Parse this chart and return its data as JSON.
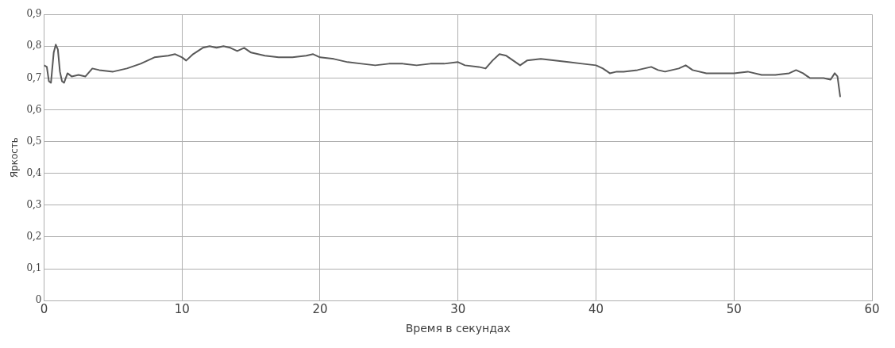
{
  "chart_data": {
    "type": "line",
    "xlabel": "Время в секундах",
    "ylabel": "Яркость",
    "xlim": [
      0,
      60
    ],
    "xticks": [
      0,
      10,
      20,
      30,
      40,
      50,
      60
    ],
    "ylim": [
      0,
      0.9
    ],
    "yticks": [
      {
        "value": 0,
        "label": "0"
      },
      {
        "value": 0.1,
        "label": "0,1"
      },
      {
        "value": 0.2,
        "label": "0,2"
      },
      {
        "value": 0.3,
        "label": "0,3"
      },
      {
        "value": 0.4,
        "label": "0,4"
      },
      {
        "value": 0.5,
        "label": "0,5"
      },
      {
        "value": 0.6,
        "label": "0,6"
      },
      {
        "value": 0.7,
        "label": "0,7"
      },
      {
        "value": 0.8,
        "label": "0,8"
      },
      {
        "value": 0.9,
        "label": "0,9"
      }
    ],
    "grid": true,
    "legend": false,
    "marker": "none",
    "line_style": "solid",
    "series": [
      {
        "color": "#595959",
        "x": [
          0,
          0.2,
          0.35,
          0.5,
          0.7,
          0.85,
          1.0,
          1.15,
          1.3,
          1.45,
          1.7,
          2,
          2.5,
          3,
          3.5,
          4,
          5,
          5.5,
          6,
          7,
          8,
          9,
          9.5,
          10,
          10.3,
          10.8,
          11.5,
          12,
          12.5,
          13,
          13.5,
          14,
          14.5,
          15,
          16,
          17,
          18,
          19,
          19.5,
          20,
          21,
          22,
          23,
          24,
          25,
          26,
          27,
          28,
          29,
          30,
          30.5,
          31.5,
          32,
          32.5,
          33,
          33.5,
          34,
          34.5,
          35,
          36,
          37,
          38,
          39,
          40,
          40.5,
          41,
          41.5,
          42,
          43,
          44,
          44.5,
          45,
          46,
          46.5,
          47,
          48,
          49,
          50,
          51,
          52,
          53,
          54,
          54.5,
          55,
          55.5,
          56,
          56.5,
          57,
          57.3,
          57.5,
          57.7
        ],
        "values": [
          0.74,
          0.735,
          0.69,
          0.685,
          0.78,
          0.805,
          0.79,
          0.72,
          0.69,
          0.685,
          0.715,
          0.705,
          0.71,
          0.705,
          0.73,
          0.725,
          0.72,
          0.725,
          0.73,
          0.745,
          0.765,
          0.77,
          0.775,
          0.765,
          0.755,
          0.775,
          0.795,
          0.8,
          0.795,
          0.8,
          0.795,
          0.785,
          0.795,
          0.78,
          0.77,
          0.765,
          0.765,
          0.77,
          0.775,
          0.765,
          0.76,
          0.75,
          0.745,
          0.74,
          0.745,
          0.745,
          0.74,
          0.745,
          0.745,
          0.75,
          0.74,
          0.735,
          0.73,
          0.755,
          0.775,
          0.77,
          0.755,
          0.74,
          0.755,
          0.76,
          0.755,
          0.75,
          0.745,
          0.74,
          0.73,
          0.715,
          0.72,
          0.72,
          0.725,
          0.735,
          0.725,
          0.72,
          0.73,
          0.74,
          0.725,
          0.715,
          0.715,
          0.715,
          0.72,
          0.71,
          0.71,
          0.715,
          0.725,
          0.715,
          0.7,
          0.7,
          0.7,
          0.695,
          0.715,
          0.705,
          0.64
        ]
      }
    ]
  }
}
